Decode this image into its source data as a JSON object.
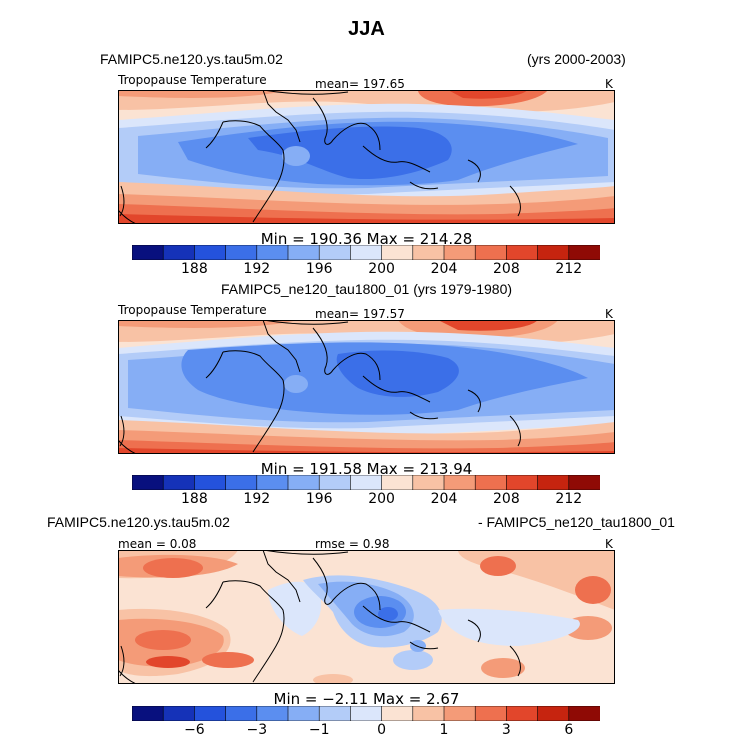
{
  "main_title": "JJA",
  "chart_data": [
    {
      "type": "heatmap",
      "panel": "top",
      "case_label": "FAMIPC5.ne120.ys.tau5m.02",
      "years_label": "(yrs 2000-2003)",
      "variable": "Tropopause Temperature",
      "mean_label": "mean= 197.65",
      "units": "K",
      "min_max_label": "Min = 190.36 Max = 214.28",
      "min": 190.36,
      "max": 214.28,
      "mean": 197.65,
      "colorbar_ticks": [
        "188",
        "192",
        "196",
        "200",
        "204",
        "208",
        "212"
      ],
      "colorbar_colors": [
        "#08107e",
        "#1532b8",
        "#2452dc",
        "#3b6fe8",
        "#5b8ef0",
        "#86aef5",
        "#b3ccf8",
        "#dbe6fb",
        "#fbe3d3",
        "#f8c2a5",
        "#f49b78",
        "#ee704f",
        "#e2462b",
        "#c6240f",
        "#8f0a05"
      ]
    },
    {
      "type": "heatmap",
      "panel": "middle",
      "case_label": "FAMIPC5_ne120_tau1800_01 (yrs 1979-1980)",
      "variable": "Tropopause Temperature",
      "mean_label": "mean= 197.57",
      "units": "K",
      "min_max_label": "Min = 191.58 Max = 213.94",
      "min": 191.58,
      "max": 213.94,
      "mean": 197.57,
      "colorbar_ticks": [
        "188",
        "192",
        "196",
        "200",
        "204",
        "208",
        "212"
      ],
      "colorbar_colors": [
        "#08107e",
        "#1532b8",
        "#2452dc",
        "#3b6fe8",
        "#5b8ef0",
        "#86aef5",
        "#b3ccf8",
        "#dbe6fb",
        "#fbe3d3",
        "#f8c2a5",
        "#f49b78",
        "#ee704f",
        "#e2462b",
        "#c6240f",
        "#8f0a05"
      ]
    },
    {
      "type": "heatmap",
      "panel": "bottom",
      "case_label": "FAMIPC5.ne120.ys.tau5m.02",
      "case_label_right": "- FAMIPC5_ne120_tau1800_01",
      "mean_label": "mean =   0.08",
      "rmse_label": "rmse =    0.98",
      "units": "K",
      "min_max_label": "Min =  −2.11 Max =   2.67",
      "min": -2.11,
      "max": 2.67,
      "mean": 0.08,
      "rmse": 0.98,
      "colorbar_ticks": [
        "−6",
        "−3",
        "−1",
        "0",
        "1",
        "3",
        "6"
      ],
      "colorbar_colors": [
        "#08107e",
        "#1532b8",
        "#2452dc",
        "#3b6fe8",
        "#5b8ef0",
        "#86aef5",
        "#b3ccf8",
        "#dbe6fb",
        "#fbe3d3",
        "#f8c2a5",
        "#f49b78",
        "#ee704f",
        "#e2462b",
        "#c6240f",
        "#8f0a05"
      ]
    }
  ]
}
